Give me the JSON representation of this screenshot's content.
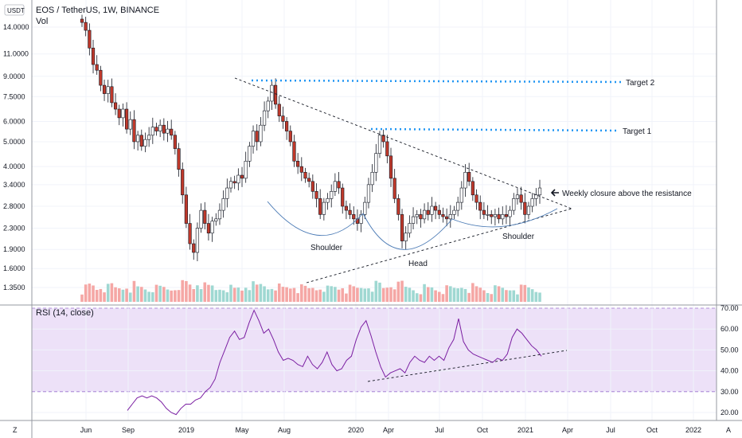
{
  "header": {
    "symbol": "EOS / TetherUS, 1W, BINANCE",
    "volume_label": "Vol",
    "currency_badge": "USDT"
  },
  "rsi": {
    "label": "RSI (14, close)",
    "ticks": [
      "70.00",
      "60.00",
      "50.00",
      "40.00",
      "30.00",
      "20.00"
    ]
  },
  "bottom": {
    "left_button": "Z",
    "right_button": "A"
  },
  "annotations": {
    "target2": "Target 2",
    "target1": "Target 1",
    "resistance_note": "Weekly closure above the resistance",
    "shoulder_left": "Shoulder",
    "head": "Head",
    "shoulder_right": "Shoulder"
  },
  "colors": {
    "up": "#26a69a",
    "down": "#ef5350",
    "up_volume": "#9fd8d2",
    "down_volume": "#f5a7a5",
    "rsi_line": "#7b1fa2",
    "rsi_band": "#ede1f8",
    "target_line": "#2196f3",
    "pattern_curve": "#4a7ab5"
  },
  "chart_data": {
    "type": "candlestick",
    "price_axis": {
      "scale": "log",
      "ticks": [
        14.0,
        11.0,
        9.0,
        7.5,
        6.0,
        5.0,
        4.0,
        3.4,
        2.8,
        2.3,
        1.9,
        1.6,
        1.35
      ],
      "tick_labels": [
        "14.0000",
        "11.0000",
        "9.0000",
        "7.5000",
        "6.0000",
        "5.0000",
        "4.0000",
        "3.4000",
        "2.8000",
        "2.3000",
        "1.9000",
        "1.6000",
        "1.3500"
      ]
    },
    "time_axis": {
      "labels": [
        "Jun",
        "Sep",
        "2019",
        "May",
        "Aug",
        "2020",
        "Apr",
        "Jul",
        "Oct",
        "2021",
        "Apr",
        "Jul",
        "Oct",
        "2022"
      ]
    },
    "close_series": [
      14.6,
      13.6,
      11.6,
      10.0,
      9.5,
      8.3,
      7.7,
      8.2,
      7.1,
      6.7,
      6.2,
      6.7,
      5.6,
      6.1,
      5.0,
      5.3,
      4.8,
      5.1,
      5.3,
      5.7,
      5.5,
      5.8,
      5.4,
      5.6,
      5.3,
      4.7,
      3.9,
      3.1,
      2.4,
      2.0,
      1.85,
      2.3,
      2.7,
      2.4,
      2.2,
      2.45,
      2.5,
      2.7,
      3.0,
      3.3,
      3.5,
      3.45,
      3.7,
      3.6,
      4.2,
      4.8,
      5.5,
      5.0,
      5.8,
      6.6,
      7.2,
      8.3,
      7.0,
      6.3,
      6.0,
      5.5,
      5.0,
      4.2,
      4.0,
      3.8,
      3.6,
      3.5,
      3.2,
      3.0,
      2.6,
      2.9,
      3.0,
      3.2,
      3.5,
      3.3,
      2.8,
      2.7,
      2.6,
      2.5,
      2.4,
      2.6,
      2.9,
      3.4,
      3.8,
      4.5,
      5.3,
      5.0,
      4.4,
      3.6,
      3.0,
      2.6,
      2.05,
      2.2,
      2.4,
      2.55,
      2.6,
      2.5,
      2.7,
      2.6,
      2.8,
      2.7,
      2.6,
      2.55,
      2.5,
      2.6,
      2.7,
      2.9,
      3.3,
      3.8,
      3.5,
      3.1,
      2.9,
      2.7,
      2.6,
      2.6,
      2.55,
      2.6,
      2.5,
      2.6,
      2.55,
      2.7,
      3.0,
      3.1,
      2.9,
      2.6,
      2.8,
      3.0,
      3.1,
      3.3
    ],
    "rsi_series": [
      21,
      24,
      27,
      28,
      27,
      28,
      27,
      25,
      22,
      20,
      19,
      22,
      24,
      24,
      26,
      27,
      30,
      32,
      36,
      44,
      50,
      56,
      59,
      55,
      56,
      63,
      69,
      64,
      58,
      60,
      55,
      49,
      45,
      46,
      45,
      43,
      42,
      47,
      43,
      41,
      44,
      49,
      43,
      40,
      41,
      45,
      47,
      55,
      61,
      64,
      57,
      49,
      42,
      37,
      39,
      40,
      41,
      39,
      44,
      47,
      45,
      44,
      47,
      45,
      47,
      45,
      51,
      55,
      65,
      54,
      50,
      48,
      47,
      46,
      45,
      44,
      46,
      45,
      48,
      56,
      60,
      58,
      55,
      52,
      50,
      47
    ],
    "targets": [
      {
        "name": "Target 2",
        "price": 8.5
      },
      {
        "name": "Target 1",
        "price": 5.45
      }
    ],
    "rsi_band": [
      30,
      70
    ]
  }
}
